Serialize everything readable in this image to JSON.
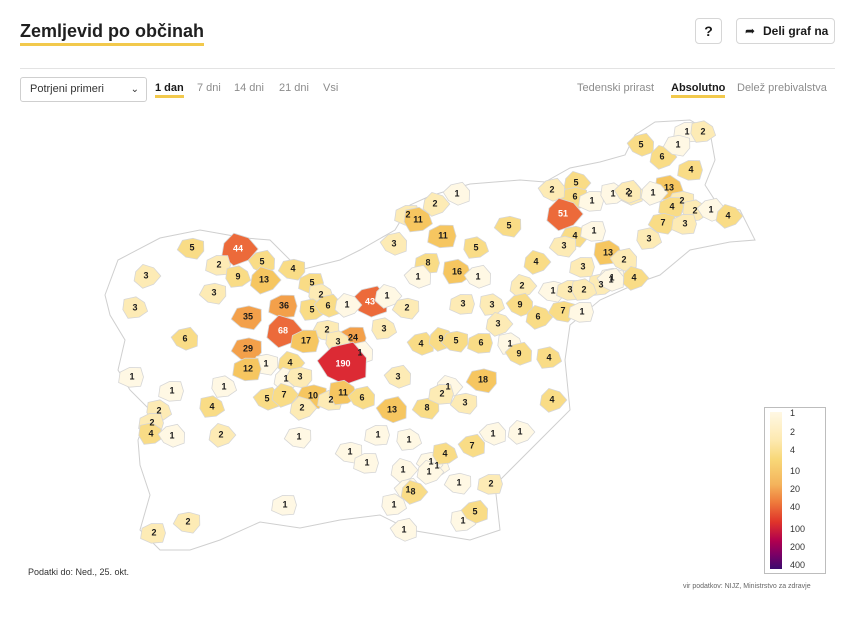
{
  "header": {
    "title": "Zemljevid po občinah",
    "help_label": "?",
    "share_label": "Deli graf na",
    "share_icon": "share-arrow-icon"
  },
  "toolbar": {
    "select_value": "Potrjeni primeri",
    "ranges": [
      "1 dan",
      "7 dni",
      "14 dni",
      "21 dni",
      "Vsi"
    ],
    "active_range": "1 dan",
    "modes": [
      "Tedenski prirast",
      "Absolutno",
      "Delež prebivalstva"
    ],
    "active_mode": "Absolutno"
  },
  "map": {
    "regions": [
      {
        "label": "1"
      },
      {
        "label": "2"
      },
      {
        "label": "5"
      },
      {
        "label": "6"
      },
      {
        "label": "1"
      },
      {
        "label": "4"
      },
      {
        "label": "13"
      },
      {
        "label": "2"
      },
      {
        "label": "5"
      },
      {
        "label": "6"
      },
      {
        "label": "1"
      },
      {
        "label": "1"
      },
      {
        "label": "2"
      },
      {
        "label": "1"
      },
      {
        "label": "2"
      },
      {
        "label": "4"
      },
      {
        "label": "2"
      },
      {
        "label": "1"
      },
      {
        "label": "4"
      },
      {
        "label": "7"
      },
      {
        "label": "3"
      },
      {
        "label": "3"
      },
      {
        "label": "2"
      },
      {
        "label": "51"
      },
      {
        "label": "4"
      },
      {
        "label": "1"
      },
      {
        "label": "13"
      },
      {
        "label": "2"
      },
      {
        "label": "4"
      },
      {
        "label": "1"
      },
      {
        "label": "2"
      },
      {
        "label": "11"
      },
      {
        "label": "1"
      },
      {
        "label": "2"
      },
      {
        "label": "5"
      },
      {
        "label": "11"
      },
      {
        "label": "5"
      },
      {
        "label": "3"
      },
      {
        "label": "44"
      },
      {
        "label": "5"
      },
      {
        "label": "2"
      },
      {
        "label": "9"
      },
      {
        "label": "5"
      },
      {
        "label": "13"
      },
      {
        "label": "4"
      },
      {
        "label": "8"
      },
      {
        "label": "16"
      },
      {
        "label": "1"
      },
      {
        "label": "4"
      },
      {
        "label": "3"
      },
      {
        "label": "3"
      },
      {
        "label": "3"
      },
      {
        "label": "1"
      },
      {
        "label": "2"
      },
      {
        "label": "1"
      },
      {
        "label": "3"
      },
      {
        "label": "2"
      },
      {
        "label": "1"
      },
      {
        "label": "3"
      },
      {
        "label": "3"
      },
      {
        "label": "5"
      },
      {
        "label": "2"
      },
      {
        "label": "43"
      },
      {
        "label": "1"
      },
      {
        "label": "35"
      },
      {
        "label": "36"
      },
      {
        "label": "5"
      },
      {
        "label": "6"
      },
      {
        "label": "1"
      },
      {
        "label": "2"
      },
      {
        "label": "3"
      },
      {
        "label": "3"
      },
      {
        "label": "9"
      },
      {
        "label": "6"
      },
      {
        "label": "7"
      },
      {
        "label": "1"
      },
      {
        "label": "3"
      },
      {
        "label": "6"
      },
      {
        "label": "68"
      },
      {
        "label": "2"
      },
      {
        "label": "24"
      },
      {
        "label": "3"
      },
      {
        "label": "4"
      },
      {
        "label": "9"
      },
      {
        "label": "5"
      },
      {
        "label": "6"
      },
      {
        "label": "1"
      },
      {
        "label": "9"
      },
      {
        "label": "3"
      },
      {
        "label": "29"
      },
      {
        "label": "17"
      },
      {
        "label": "3"
      },
      {
        "label": "1"
      },
      {
        "label": "4"
      },
      {
        "label": "1"
      },
      {
        "label": "12"
      },
      {
        "label": "4"
      },
      {
        "label": "190"
      },
      {
        "label": "1"
      },
      {
        "label": "3"
      },
      {
        "label": "1"
      },
      {
        "label": "1"
      },
      {
        "label": "3"
      },
      {
        "label": "1"
      },
      {
        "label": "18"
      },
      {
        "label": "1"
      },
      {
        "label": "4"
      },
      {
        "label": "5"
      },
      {
        "label": "7"
      },
      {
        "label": "10"
      },
      {
        "label": "2"
      },
      {
        "label": "11"
      },
      {
        "label": "6"
      },
      {
        "label": "2"
      },
      {
        "label": "8"
      },
      {
        "label": "2"
      },
      {
        "label": "2"
      },
      {
        "label": "13"
      },
      {
        "label": "4"
      },
      {
        "label": "3"
      },
      {
        "label": "2"
      },
      {
        "label": "4"
      },
      {
        "label": "1"
      },
      {
        "label": "2"
      },
      {
        "label": "1"
      },
      {
        "label": "1"
      },
      {
        "label": "1"
      },
      {
        "label": "1"
      },
      {
        "label": "1"
      },
      {
        "label": "1"
      },
      {
        "label": "1"
      },
      {
        "label": "1"
      },
      {
        "label": "7"
      },
      {
        "label": "1"
      },
      {
        "label": "1"
      },
      {
        "label": "1"
      },
      {
        "label": "1"
      },
      {
        "label": "1"
      },
      {
        "label": "8"
      },
      {
        "label": "1"
      },
      {
        "label": "2"
      },
      {
        "label": "1"
      },
      {
        "label": "5"
      },
      {
        "label": "1"
      },
      {
        "label": "2"
      },
      {
        "label": "2"
      },
      {
        "label": "4"
      },
      {
        "label": "1"
      }
    ]
  },
  "legend": {
    "ticks": [
      "1",
      "2",
      "4",
      "10",
      "20",
      "40",
      "100",
      "200",
      "400"
    ],
    "colors": [
      "#fff8e4",
      "#fdebb5",
      "#f9dc86",
      "#f6c660",
      "#f3a04a",
      "#ec6a3a",
      "#dc2a34",
      "#a00052",
      "#4a0a6e"
    ]
  },
  "footer": {
    "data_date": "Podatki do: Ned., 25. okt.",
    "source": "vir podatkov: NIJZ, Ministrstvo za zdravje"
  }
}
